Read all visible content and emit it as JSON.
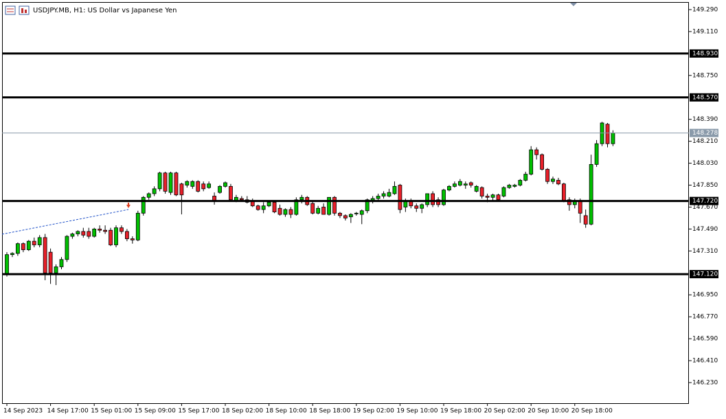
{
  "chart_data": {
    "type": "candlestick",
    "title": "USDJPY.MB, H1:  US Dollar vs Japanese Yen",
    "categories": [
      "14 Sep 2023",
      null,
      null,
      null,
      null,
      null,
      null,
      null,
      "14 Sep 17:00",
      null,
      null,
      null,
      null,
      null,
      null,
      null,
      "15 Sep 01:00",
      null,
      null,
      null,
      null,
      null,
      null,
      null,
      "15 Sep 09:00",
      null,
      null,
      null,
      null,
      null,
      null,
      null,
      "15 Sep 17:00",
      null,
      null,
      null,
      null,
      null,
      null,
      null,
      "18 Sep 02:00",
      null,
      null,
      null,
      null,
      null,
      null,
      null,
      "18 Sep 10:00",
      null,
      null,
      null,
      null,
      null,
      null,
      null,
      "18 Sep 18:00",
      null,
      null,
      null,
      null,
      null,
      null,
      null,
      "19 Sep 02:00",
      null,
      null,
      null,
      null,
      null,
      null,
      null,
      "19 Sep 10:00",
      null,
      null,
      null,
      null,
      null,
      null,
      null,
      "19 Sep 18:00",
      null,
      null,
      null,
      null,
      null,
      null,
      null,
      "20 Sep 02:00",
      null,
      null,
      null,
      null,
      null,
      null,
      null,
      "20 Sep 10:00",
      null,
      null,
      null,
      null,
      null,
      null,
      null,
      "20 Sep 18:00",
      null,
      null,
      null,
      null,
      null,
      null,
      null
    ],
    "open": [
      147.115,
      147.28,
      147.29,
      147.37,
      147.32,
      147.39,
      147.36,
      147.42,
      147.3,
      147.13,
      147.18,
      147.24,
      147.43,
      147.45,
      147.47,
      147.47,
      147.43,
      147.49,
      147.48,
      147.48,
      147.36,
      147.5,
      147.47,
      147.41,
      147.4,
      147.62,
      147.75,
      147.78,
      147.82,
      147.95,
      147.79,
      147.95,
      147.86,
      147.85,
      147.84,
      147.88,
      147.86,
      147.83,
      147.76,
      147.79,
      147.84,
      147.84,
      147.72,
      147.74,
      147.73,
      147.72,
      147.68,
      147.65,
      147.68,
      147.71,
      147.66,
      147.61,
      147.65,
      147.61,
      147.73,
      147.75,
      147.7,
      147.62,
      147.67,
      147.61,
      147.75,
      147.62,
      147.6,
      147.59,
      147.62,
      147.61,
      147.64,
      147.72,
      147.74,
      147.76,
      147.76,
      147.78,
      147.85,
      147.67,
      147.72,
      147.68,
      147.66,
      147.69,
      147.78,
      147.73,
      147.69,
      147.81,
      147.84,
      147.85,
      147.85,
      147.87,
      147.8,
      147.83,
      147.76,
      147.75,
      147.77,
      147.76,
      147.83,
      147.84,
      147.85,
      147.89,
      147.94,
      148.14,
      148.1,
      147.98,
      147.88,
      147.89,
      147.86,
      147.73,
      147.69,
      147.72,
      147.6,
      147.53,
      148.02,
      148.19,
      148.35,
      148.19
    ],
    "high": [
      147.3,
      147.3,
      147.38,
      147.38,
      147.4,
      147.42,
      147.44,
      147.45,
      147.33,
      147.2,
      147.26,
      147.44,
      147.46,
      147.48,
      147.5,
      147.5,
      147.5,
      147.52,
      147.52,
      147.5,
      147.52,
      147.52,
      147.49,
      147.43,
      147.64,
      147.76,
      147.79,
      147.84,
      147.96,
      147.96,
      147.96,
      147.96,
      147.87,
      147.89,
      147.89,
      147.89,
      147.88,
      147.88,
      147.79,
      147.85,
      147.88,
      147.86,
      147.77,
      147.76,
      147.76,
      147.74,
      147.69,
      147.71,
      147.72,
      147.72,
      147.69,
      147.66,
      147.67,
      147.75,
      147.77,
      147.76,
      147.72,
      147.68,
      147.7,
      147.75,
      147.76,
      147.63,
      147.61,
      147.62,
      147.63,
      147.65,
      147.74,
      147.76,
      147.78,
      147.8,
      147.82,
      147.88,
      147.86,
      147.74,
      147.74,
      147.7,
      147.7,
      147.78,
      147.8,
      147.75,
      147.82,
      147.85,
      147.88,
      147.9,
      147.88,
      147.88,
      147.85,
      147.84,
      147.78,
      147.78,
      147.78,
      147.84,
      147.86,
      147.86,
      147.9,
      147.96,
      148.17,
      148.16,
      148.11,
      147.99,
      147.92,
      147.91,
      147.87,
      147.75,
      147.74,
      147.74,
      147.65,
      148.1,
      148.22,
      148.37,
      148.36,
      148.3
    ],
    "low": [
      147.1,
      147.26,
      147.27,
      147.3,
      147.31,
      147.34,
      147.34,
      147.07,
      147.04,
      147.03,
      147.16,
      147.22,
      147.41,
      147.43,
      147.42,
      147.41,
      147.42,
      147.46,
      147.45,
      147.35,
      147.34,
      147.45,
      147.39,
      147.37,
      147.39,
      147.6,
      147.73,
      147.76,
      147.8,
      147.78,
      147.77,
      147.76,
      147.61,
      147.83,
      147.82,
      147.79,
      147.8,
      147.82,
      147.69,
      147.78,
      147.83,
      147.72,
      147.71,
      147.72,
      147.7,
      147.67,
      147.64,
      147.62,
      147.67,
      147.62,
      147.6,
      147.59,
      147.58,
      147.6,
      147.7,
      147.68,
      147.61,
      147.61,
      147.61,
      147.6,
      147.6,
      147.58,
      147.56,
      147.54,
      147.6,
      147.53,
      147.62,
      147.7,
      147.72,
      147.74,
      147.75,
      147.77,
      147.62,
      147.63,
      147.66,
      147.63,
      147.62,
      147.67,
      147.67,
      147.67,
      147.68,
      147.8,
      147.83,
      147.84,
      147.82,
      147.83,
      147.79,
      147.74,
      147.71,
      147.72,
      147.72,
      147.75,
      147.82,
      147.83,
      147.84,
      147.88,
      147.93,
      148.06,
      147.97,
      147.86,
      147.86,
      147.85,
      147.71,
      147.64,
      147.66,
      147.54,
      147.5,
      147.52,
      148.0,
      148.17,
      148.16,
      148.17
    ],
    "close": [
      147.28,
      147.29,
      147.37,
      147.32,
      147.39,
      147.36,
      147.42,
      147.13,
      147.13,
      147.18,
      147.24,
      147.43,
      147.45,
      147.47,
      147.44,
      147.43,
      147.49,
      147.48,
      147.47,
      147.36,
      147.5,
      147.47,
      147.41,
      147.4,
      147.62,
      147.75,
      147.78,
      147.82,
      147.95,
      147.8,
      147.95,
      147.77,
      147.77,
      147.88,
      147.88,
      147.8,
      147.82,
      147.86,
      147.72,
      147.84,
      147.87,
      147.73,
      147.75,
      147.73,
      147.71,
      147.68,
      147.65,
      147.68,
      147.71,
      147.63,
      147.61,
      147.65,
      147.61,
      147.73,
      147.75,
      147.69,
      147.62,
      147.66,
      147.61,
      147.75,
      147.62,
      147.6,
      147.58,
      147.61,
      147.62,
      147.64,
      147.73,
      147.74,
      147.76,
      147.78,
      147.79,
      147.84,
      147.65,
      147.72,
      147.68,
      147.66,
      147.69,
      147.78,
      147.69,
      147.69,
      147.81,
      147.84,
      147.86,
      147.88,
      147.86,
      147.85,
      147.84,
      147.76,
      147.75,
      147.77,
      147.73,
      147.83,
      147.85,
      147.85,
      147.89,
      147.94,
      148.14,
      148.1,
      147.98,
      147.88,
      147.9,
      147.86,
      147.72,
      147.69,
      147.72,
      147.62,
      147.53,
      148.02,
      148.19,
      148.36,
      148.19,
      148.278
    ],
    "up_color": "#00c000",
    "down_color": "#e8202a",
    "ylim": [
      146.061,
      149.352
    ],
    "yticks": [
      {
        "value": 149.29,
        "label": "149.290"
      },
      {
        "value": 149.11,
        "label": "149.110"
      },
      {
        "value": 148.75,
        "label": "148.750"
      },
      {
        "value": 148.39,
        "label": "148.390"
      },
      {
        "value": 148.21,
        "label": "148.210"
      },
      {
        "value": 148.03,
        "label": "148.030"
      },
      {
        "value": 147.85,
        "label": "147.850"
      },
      {
        "value": 147.67,
        "label": "147.670"
      },
      {
        "value": 147.49,
        "label": "147.490"
      },
      {
        "value": 147.31,
        "label": "147.310"
      },
      {
        "value": 146.95,
        "label": "146.950"
      },
      {
        "value": 146.77,
        "label": "146.770"
      },
      {
        "value": 146.59,
        "label": "146.590"
      },
      {
        "value": 146.41,
        "label": "146.410"
      },
      {
        "value": 146.23,
        "label": "146.230"
      }
    ],
    "levels": [
      {
        "value": 148.93,
        "label": "148.930"
      },
      {
        "value": 148.57,
        "label": "148.570"
      },
      {
        "value": 147.72,
        "label": "147.720"
      },
      {
        "value": 147.12,
        "label": "147.120"
      }
    ],
    "grid": false
  }
}
